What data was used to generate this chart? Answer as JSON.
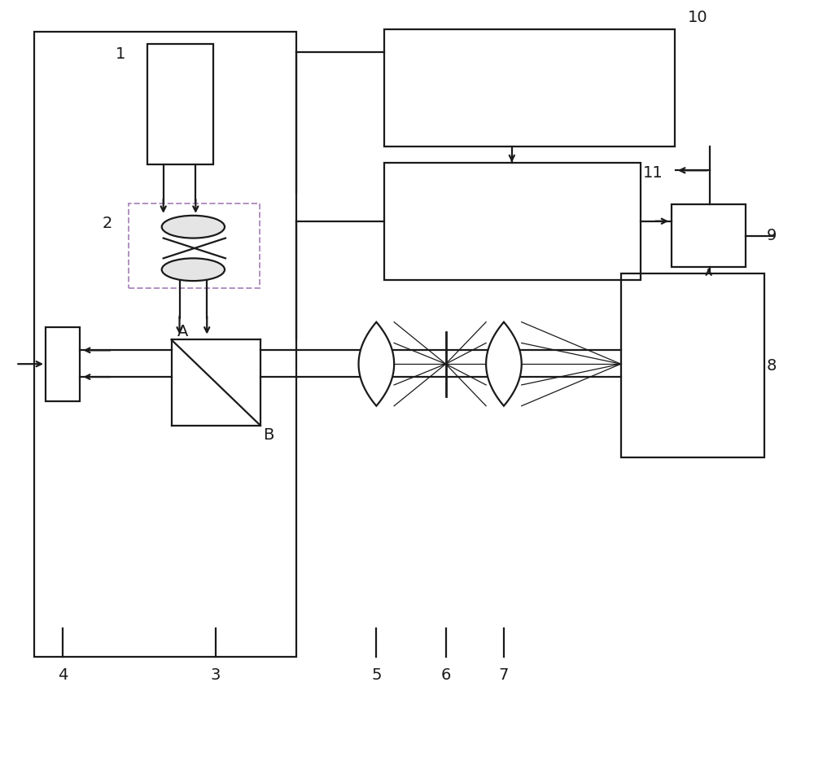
{
  "background": "#ffffff",
  "line_color": "#1a1a1a",
  "dashed_box_color": "#b090c0",
  "fig_width": 10.0,
  "fig_height": 9.35
}
